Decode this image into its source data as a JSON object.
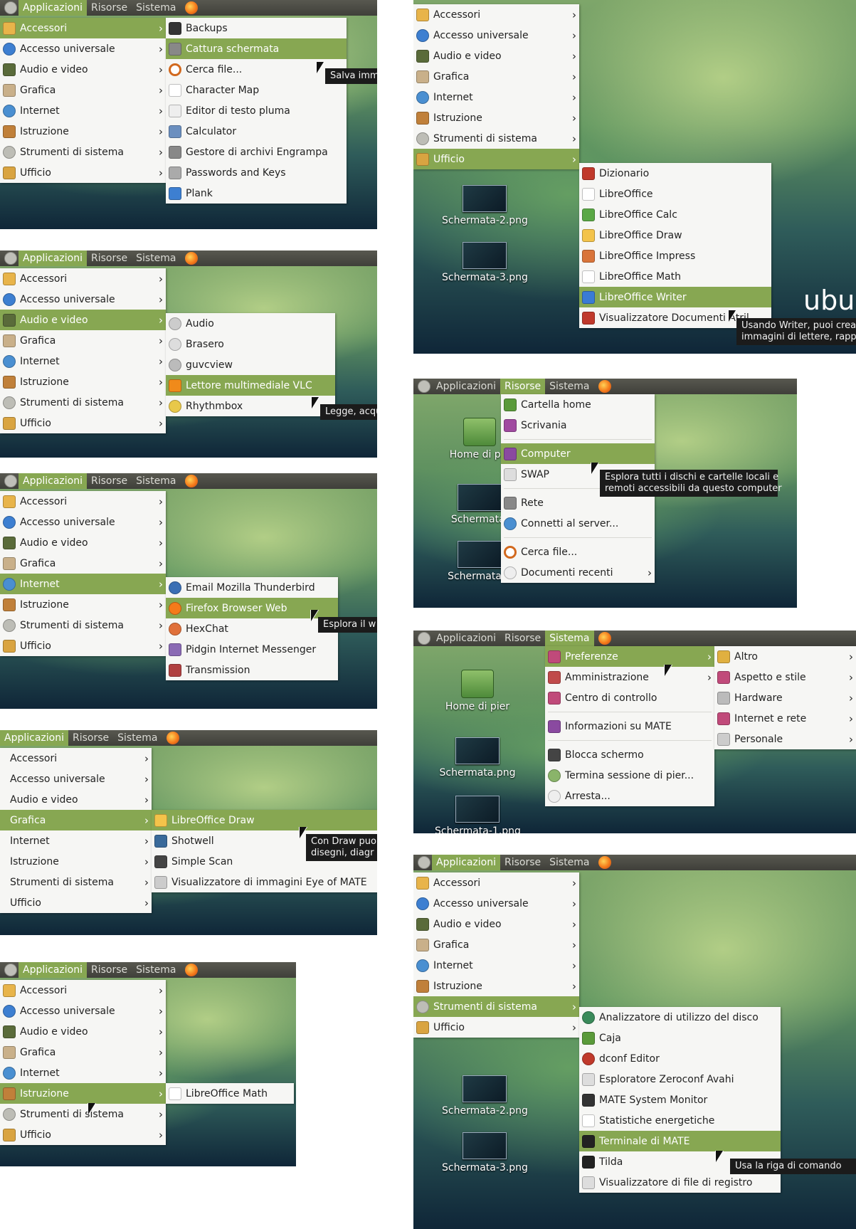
{
  "panel": {
    "applicazioni": "Applicazioni",
    "risorse": "Risorse",
    "sistema": "Sistema"
  },
  "categories": {
    "accessori": "Accessori",
    "accesso": "Accesso universale",
    "audio": "Audio e video",
    "grafica": "Grafica",
    "internet": "Internet",
    "istruzione": "Istruzione",
    "strumenti": "Strumenti di sistema",
    "ufficio": "Ufficio"
  },
  "accessori_menu": [
    "Backups",
    "Cattura schermata",
    "Cerca file...",
    "Character Map",
    "Editor di testo pluma",
    "Calculator",
    "Gestore di archivi Engrampa",
    "Passwords and Keys",
    "Plank"
  ],
  "accessori_tip": "Salva imm",
  "audio_menu": [
    "Audio",
    "Brasero",
    "guvcview",
    "Lettore multimediale VLC",
    "Rhythmbox"
  ],
  "audio_tip": "Legge, acqu",
  "internet_menu": [
    "Email Mozilla Thunderbird",
    "Firefox Browser Web",
    "HexChat",
    "Pidgin Internet Messenger",
    "Transmission"
  ],
  "internet_tip": "Esplora il w",
  "grafica_menu": [
    "LibreOffice Draw",
    "Shotwell",
    "Simple Scan",
    "Visualizzatore di immagini Eye of MATE"
  ],
  "grafica_tip": "Con Draw puo\ndisegni, diagr",
  "istruzione_menu": [
    "LibreOffice Math"
  ],
  "ufficio_menu": [
    "Dizionario",
    "LibreOffice",
    "LibreOffice Calc",
    "LibreOffice Draw",
    "LibreOffice Impress",
    "LibreOffice Math",
    "LibreOffice Writer",
    "Visualizzatore Documenti Atril"
  ],
  "ufficio_tip": "Usando Writer, puoi crea\nimmagini di lettere, rapp",
  "risorse_menu": [
    "Cartella home",
    "Scrivania",
    "Computer",
    "SWAP",
    "Rete",
    "Connetti al server...",
    "Cerca file...",
    "Documenti recenti"
  ],
  "risorse_tip": "Esplora tutti i dischi e cartelle locali e\nremoti accessibili da questo computer",
  "sistema_menu": [
    "Preferenze",
    "Amministrazione",
    "Centro di controllo",
    "Informazioni su MATE",
    "Blocca schermo",
    "Termina sessione di pier...",
    "Arresta..."
  ],
  "preferenze_menu": [
    "Altro",
    "Aspetto e stile",
    "Hardware",
    "Internet e rete",
    "Personale"
  ],
  "strumenti_menu": [
    "Analizzatore di utilizzo del disco",
    "Caja",
    "dconf Editor",
    "Esploratore Zeroconf Avahi",
    "MATE System Monitor",
    "Statistiche energetiche",
    "Terminale di MATE",
    "Tilda",
    "Visualizzatore di file di registro"
  ],
  "strumenti_tip": "Usa la riga di comando",
  "desktop": {
    "home": "Home di pier",
    "home_trunc": "Home di pie",
    "s1": "Schermata-1.png",
    "s2": "Schermata-2.png",
    "s3": "Schermata-3.png",
    "s": "Schermata.png",
    "s_trunc": "Schermata.",
    "s1_trunc": "Schermata-1",
    "ubuntu": "ubu"
  },
  "colors": {
    "highlight": "#87a752",
    "panel": "#45453f",
    "menu_bg": "#f6f6f4"
  }
}
